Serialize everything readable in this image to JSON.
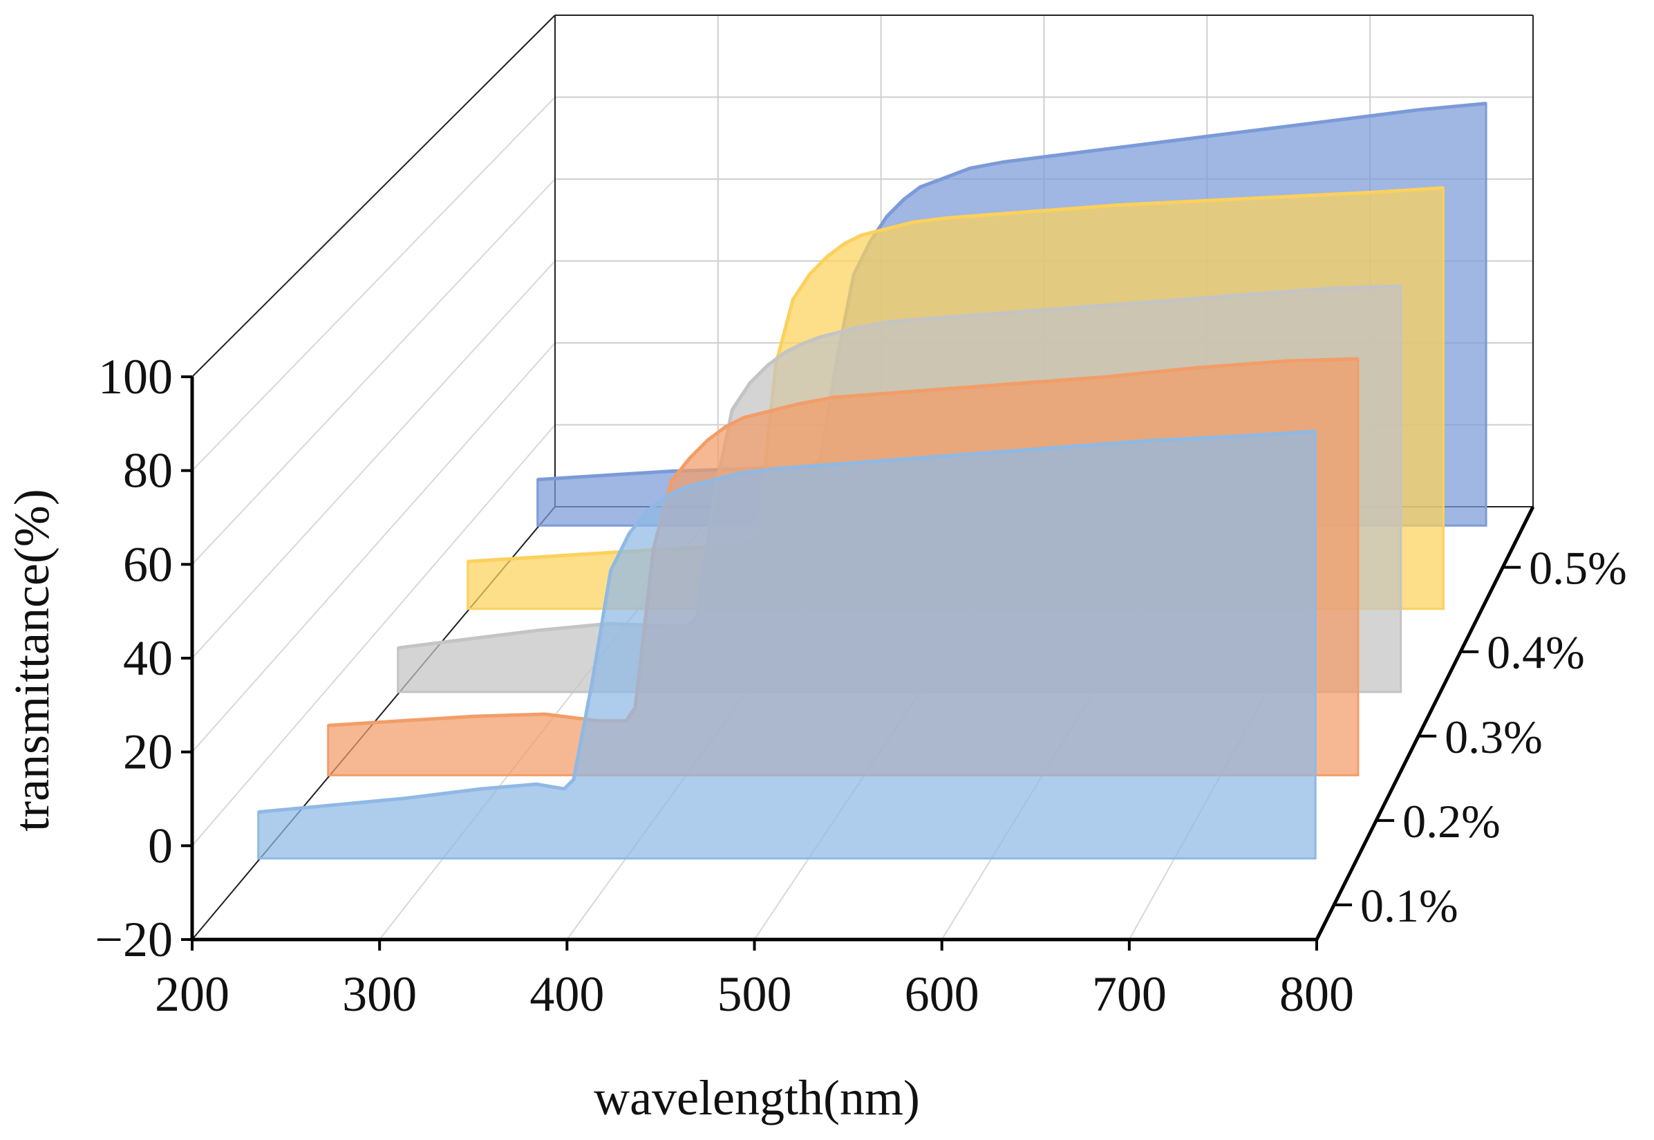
{
  "chart_data": {
    "type": "area",
    "xlabel": "wavelength(nm)",
    "ylabel": "transmittance(%)",
    "xlim": [
      200,
      800
    ],
    "ylim": [
      -20,
      100
    ],
    "x_ticks": [
      200,
      300,
      400,
      500,
      600,
      700,
      800
    ],
    "y_ticks": [
      -20,
      0,
      20,
      40,
      60,
      80,
      100
    ],
    "y_tick_labels": [
      "−20",
      "0",
      "20",
      "40",
      "60",
      "80",
      "100"
    ],
    "depth_labels": [
      "0.1%",
      "0.2%",
      "0.3%",
      "0.4%",
      "0.5%"
    ],
    "grid": true,
    "x": [
      220,
      260,
      300,
      340,
      370,
      385,
      390,
      400,
      410,
      420,
      430,
      440,
      450,
      460,
      470,
      480,
      500,
      550,
      600,
      650,
      700,
      750,
      790
    ],
    "series": [
      {
        "name": "0.1%",
        "color": "#8fb9e4",
        "values": [
          0,
          1.5,
          3,
          5,
          6,
          5,
          7,
          28,
          52,
          60,
          65,
          68,
          70,
          71,
          72,
          73,
          74,
          75.5,
          77,
          78.5,
          80,
          81,
          82
        ]
      },
      {
        "name": "0.2%",
        "color": "#f29d68",
        "values": [
          1,
          2,
          3,
          3.5,
          2,
          2,
          5,
          40,
          55,
          60,
          64,
          67,
          69,
          70,
          71,
          72,
          73.5,
          75,
          76.5,
          78,
          80,
          81.5,
          82
        ]
      },
      {
        "name": "0.3%",
        "color": "#c4c4c4",
        "values": [
          0,
          2,
          4,
          5.5,
          5,
          5,
          7,
          35,
          54,
          60,
          64,
          67,
          69,
          70.5,
          71.5,
          72.5,
          74,
          75.5,
          77,
          78.5,
          80,
          81.5,
          82
        ]
      },
      {
        "name": "0.4%",
        "color": "#fcd15c",
        "values": [
          1,
          2,
          3,
          4,
          4.5,
          5,
          9,
          47,
          62,
          68,
          72,
          75,
          77,
          78,
          79,
          80,
          81,
          82.5,
          84,
          85,
          86,
          87,
          88
        ]
      },
      {
        "name": "0.5%",
        "color": "#7b9ad8",
        "values": [
          1,
          2,
          3,
          3.5,
          4,
          4,
          6,
          30,
          50,
          58,
          64,
          68,
          71,
          72.5,
          74,
          75.5,
          77,
          79.5,
          82,
          84.5,
          87,
          89.5,
          91
        ]
      }
    ]
  }
}
